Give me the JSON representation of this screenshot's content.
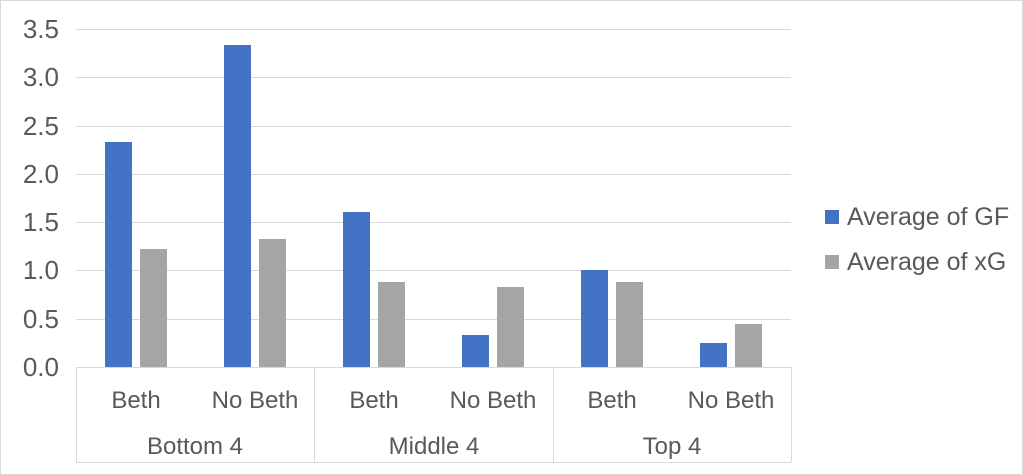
{
  "chart_data": {
    "type": "bar",
    "title": "",
    "xlabel": "",
    "ylabel": "",
    "groups": [
      "Bottom 4",
      "Middle 4",
      "Top 4"
    ],
    "subcategories_per_group": [
      "Beth",
      "No Beth"
    ],
    "categories": [
      {
        "group": "Bottom 4",
        "sub": "Beth"
      },
      {
        "group": "Bottom 4",
        "sub": "No Beth"
      },
      {
        "group": "Middle 4",
        "sub": "Beth"
      },
      {
        "group": "Middle 4",
        "sub": "No Beth"
      },
      {
        "group": "Top 4",
        "sub": "Beth"
      },
      {
        "group": "Top 4",
        "sub": "No Beth"
      }
    ],
    "series": [
      {
        "name": "Average of GF",
        "color": "#4472C4",
        "values": [
          2.33,
          3.33,
          1.6,
          0.33,
          1.0,
          0.25
        ]
      },
      {
        "name": "Average of xG",
        "color": "#A5A5A5",
        "values": [
          1.22,
          1.33,
          0.88,
          0.83,
          0.88,
          0.45
        ]
      }
    ],
    "ylim": [
      0,
      3.5
    ],
    "y_tick_step": 0.5,
    "y_tick_labels": [
      "0.0",
      "0.5",
      "1.0",
      "1.5",
      "2.0",
      "2.5",
      "3.0",
      "3.5"
    ],
    "grid": true,
    "legend": {
      "position": "right",
      "entries": [
        "Average of GF",
        "Average of xG"
      ]
    }
  },
  "style": {
    "background": "#FFFFFF",
    "chart_border": "#D9D9D9",
    "gridline": "#D9D9D9",
    "axis_line": "#D9D9D9",
    "text": "#595959"
  }
}
